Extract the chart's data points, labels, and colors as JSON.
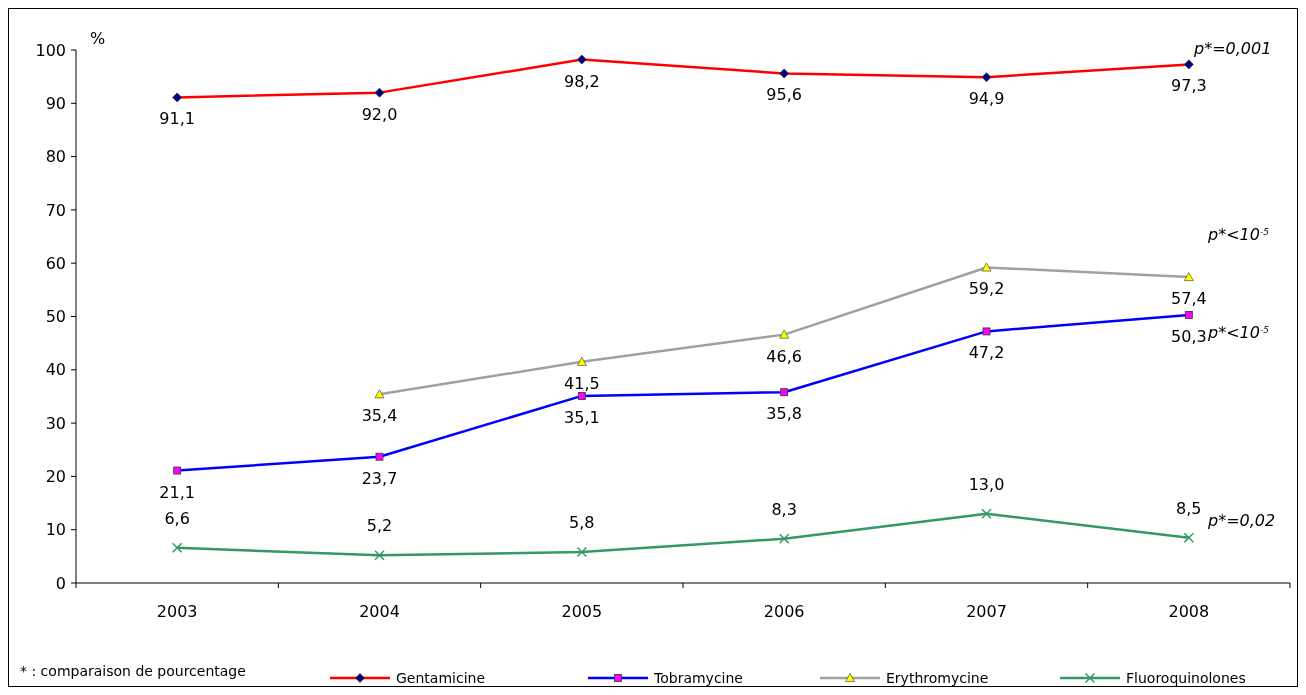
{
  "chart_data": {
    "type": "line",
    "ylabel": "%",
    "categories": [
      "2003",
      "2004",
      "2005",
      "2006",
      "2007",
      "2008"
    ],
    "ylim": [
      0,
      100
    ],
    "yticks": [
      0,
      10,
      20,
      30,
      40,
      50,
      60,
      70,
      80,
      90,
      100
    ],
    "grid": false,
    "legend": "bottom",
    "line_style": "solid",
    "series": [
      {
        "name": "Gentamicine",
        "color": "#ff0000",
        "marker": "diamond",
        "values": [
          91.1,
          92.0,
          98.2,
          95.6,
          94.9,
          97.3
        ],
        "value_labels": [
          "91,1",
          "92,0",
          "98,2",
          "95,6",
          "94,9",
          "97,3"
        ]
      },
      {
        "name": "Tobramycine",
        "color": "#0000ff",
        "marker": "square",
        "values": [
          21.1,
          23.7,
          35.1,
          35.8,
          47.2,
          50.3
        ],
        "value_labels": [
          "21,1",
          "23,7",
          "35,1",
          "35,8",
          "47,2",
          "50,3"
        ]
      },
      {
        "name": "Erythromycine",
        "color": "#a0a0a0",
        "marker": "triangle",
        "values": [
          null,
          35.4,
          41.5,
          46.6,
          59.2,
          57.4
        ],
        "value_labels": [
          null,
          "35,4",
          "41,5",
          "46,6",
          "59,2",
          "57,4"
        ]
      },
      {
        "name": "Fluoroquinolones",
        "color": "#339966",
        "marker": "cross",
        "values": [
          6.6,
          5.2,
          5.8,
          8.3,
          13.0,
          8.5
        ],
        "value_labels": [
          "6,6",
          "5,2",
          "5,8",
          "8,3",
          "13,0",
          "8,5"
        ]
      }
    ],
    "annotations": [
      "p*=0,001",
      "p*<10$^{-5}$",
      "p*<10$^{-5}$",
      "p*=0,02",
      "* : comparaison de pourcentage"
    ]
  }
}
